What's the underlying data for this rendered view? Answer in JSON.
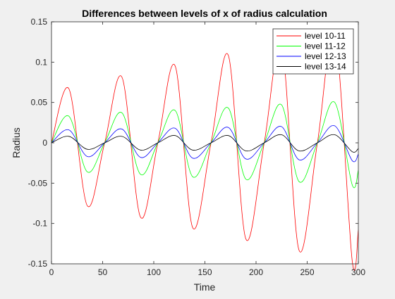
{
  "chart_data": {
    "type": "line",
    "title": "Differences between levels of x of radius calculation",
    "xlabel": "Time",
    "ylabel": "Radius",
    "xlim": [
      0,
      300
    ],
    "ylim": [
      -0.15,
      0.15
    ],
    "xticks": [
      "0",
      "50",
      "100",
      "150",
      "200",
      "250",
      "300"
    ],
    "yticks": [
      "-0.15",
      "-0.1",
      "-0.05",
      "0",
      "0.05",
      "0.1",
      "0.15"
    ],
    "grid": false,
    "legend_position": "top-right",
    "x": [
      0,
      17,
      35,
      52,
      69,
      87,
      104,
      121,
      138,
      156,
      173,
      190,
      208,
      225,
      242,
      260,
      277,
      294,
      300
    ],
    "series": [
      {
        "name": "level 10-11",
        "color": "#ff0000",
        "values": [
          0,
          0.067,
          -0.078,
          0,
          0.081,
          -0.092,
          0,
          0.095,
          -0.105,
          0,
          0.108,
          -0.119,
          0,
          0.121,
          -0.133,
          0,
          0.135,
          -0.146,
          -0.108
        ]
      },
      {
        "name": "level 11-12",
        "color": "#00ff00",
        "values": [
          0,
          0.033,
          -0.036,
          0,
          0.037,
          -0.039,
          0,
          0.04,
          -0.042,
          0,
          0.043,
          -0.045,
          0,
          0.047,
          -0.048,
          0,
          0.05,
          -0.052,
          -0.034
        ]
      },
      {
        "name": "level 12-13",
        "color": "#0000ff",
        "values": [
          0,
          0.016,
          -0.017,
          0,
          0.017,
          -0.018,
          0,
          0.018,
          -0.019,
          0,
          0.019,
          -0.02,
          0,
          0.02,
          -0.021,
          0,
          0.021,
          -0.022,
          -0.014
        ]
      },
      {
        "name": "level 13-14",
        "color": "#000000",
        "values": [
          0,
          0.008,
          -0.008,
          0,
          0.008,
          -0.009,
          0,
          0.009,
          -0.009,
          0,
          0.009,
          -0.01,
          0,
          0.01,
          -0.01,
          0,
          0.01,
          -0.011,
          -0.007
        ]
      }
    ]
  }
}
